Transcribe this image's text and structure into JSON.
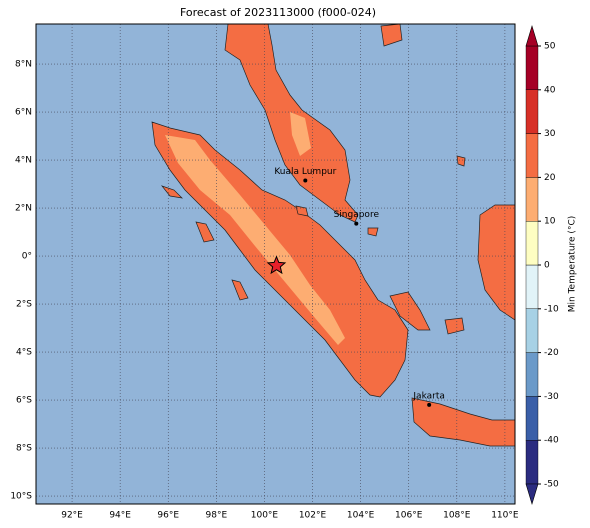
{
  "chart_data": {
    "type": "map",
    "title": "Forecast of 2023113000 (f000-024)",
    "xlim": [
      90.5,
      110.42
    ],
    "ylim": [
      -10.33,
      9.67
    ],
    "xticks": [
      {
        "value": 92,
        "label": "92°E"
      },
      {
        "value": 94,
        "label": "94°E"
      },
      {
        "value": 96,
        "label": "96°E"
      },
      {
        "value": 98,
        "label": "98°E"
      },
      {
        "value": 100,
        "label": "100°E"
      },
      {
        "value": 102,
        "label": "102°E"
      },
      {
        "value": 104,
        "label": "104°E"
      },
      {
        "value": 106,
        "label": "106°E"
      },
      {
        "value": 108,
        "label": "108°E"
      },
      {
        "value": 110,
        "label": "110°E"
      }
    ],
    "yticks": [
      {
        "value": 8,
        "label": "8°N"
      },
      {
        "value": 6,
        "label": "6°N"
      },
      {
        "value": 4,
        "label": "4°N"
      },
      {
        "value": 2,
        "label": "2°N"
      },
      {
        "value": 0,
        "label": "0°"
      },
      {
        "value": -2,
        "label": "2°S"
      },
      {
        "value": -4,
        "label": "4°S"
      },
      {
        "value": -6,
        "label": "6°S"
      },
      {
        "value": -8,
        "label": "8°S"
      },
      {
        "value": -10,
        "label": "10°S"
      }
    ],
    "grid": true,
    "colorbar": {
      "label": "Min Temperature (°C)",
      "ticks": [
        -50,
        -40,
        -30,
        -20,
        -10,
        0,
        10,
        20,
        30,
        40,
        50
      ],
      "colors": [
        "#2b2c80",
        "#3a5fa8",
        "#6b9ac9",
        "#a7d1e5",
        "#e1f3f8",
        "#fefec2",
        "#fdad72",
        "#f46d43",
        "#d73027",
        "#a50026"
      ]
    },
    "cities": [
      {
        "name": "Kuala Lumpur",
        "lon": 101.7,
        "lat": 3.15
      },
      {
        "name": "Singapore",
        "lon": 103.82,
        "lat": 1.35
      },
      {
        "name": "Jakarta",
        "lon": 106.85,
        "lat": -6.2
      }
    ],
    "star": {
      "lon": 100.5,
      "lat": -0.4
    }
  }
}
